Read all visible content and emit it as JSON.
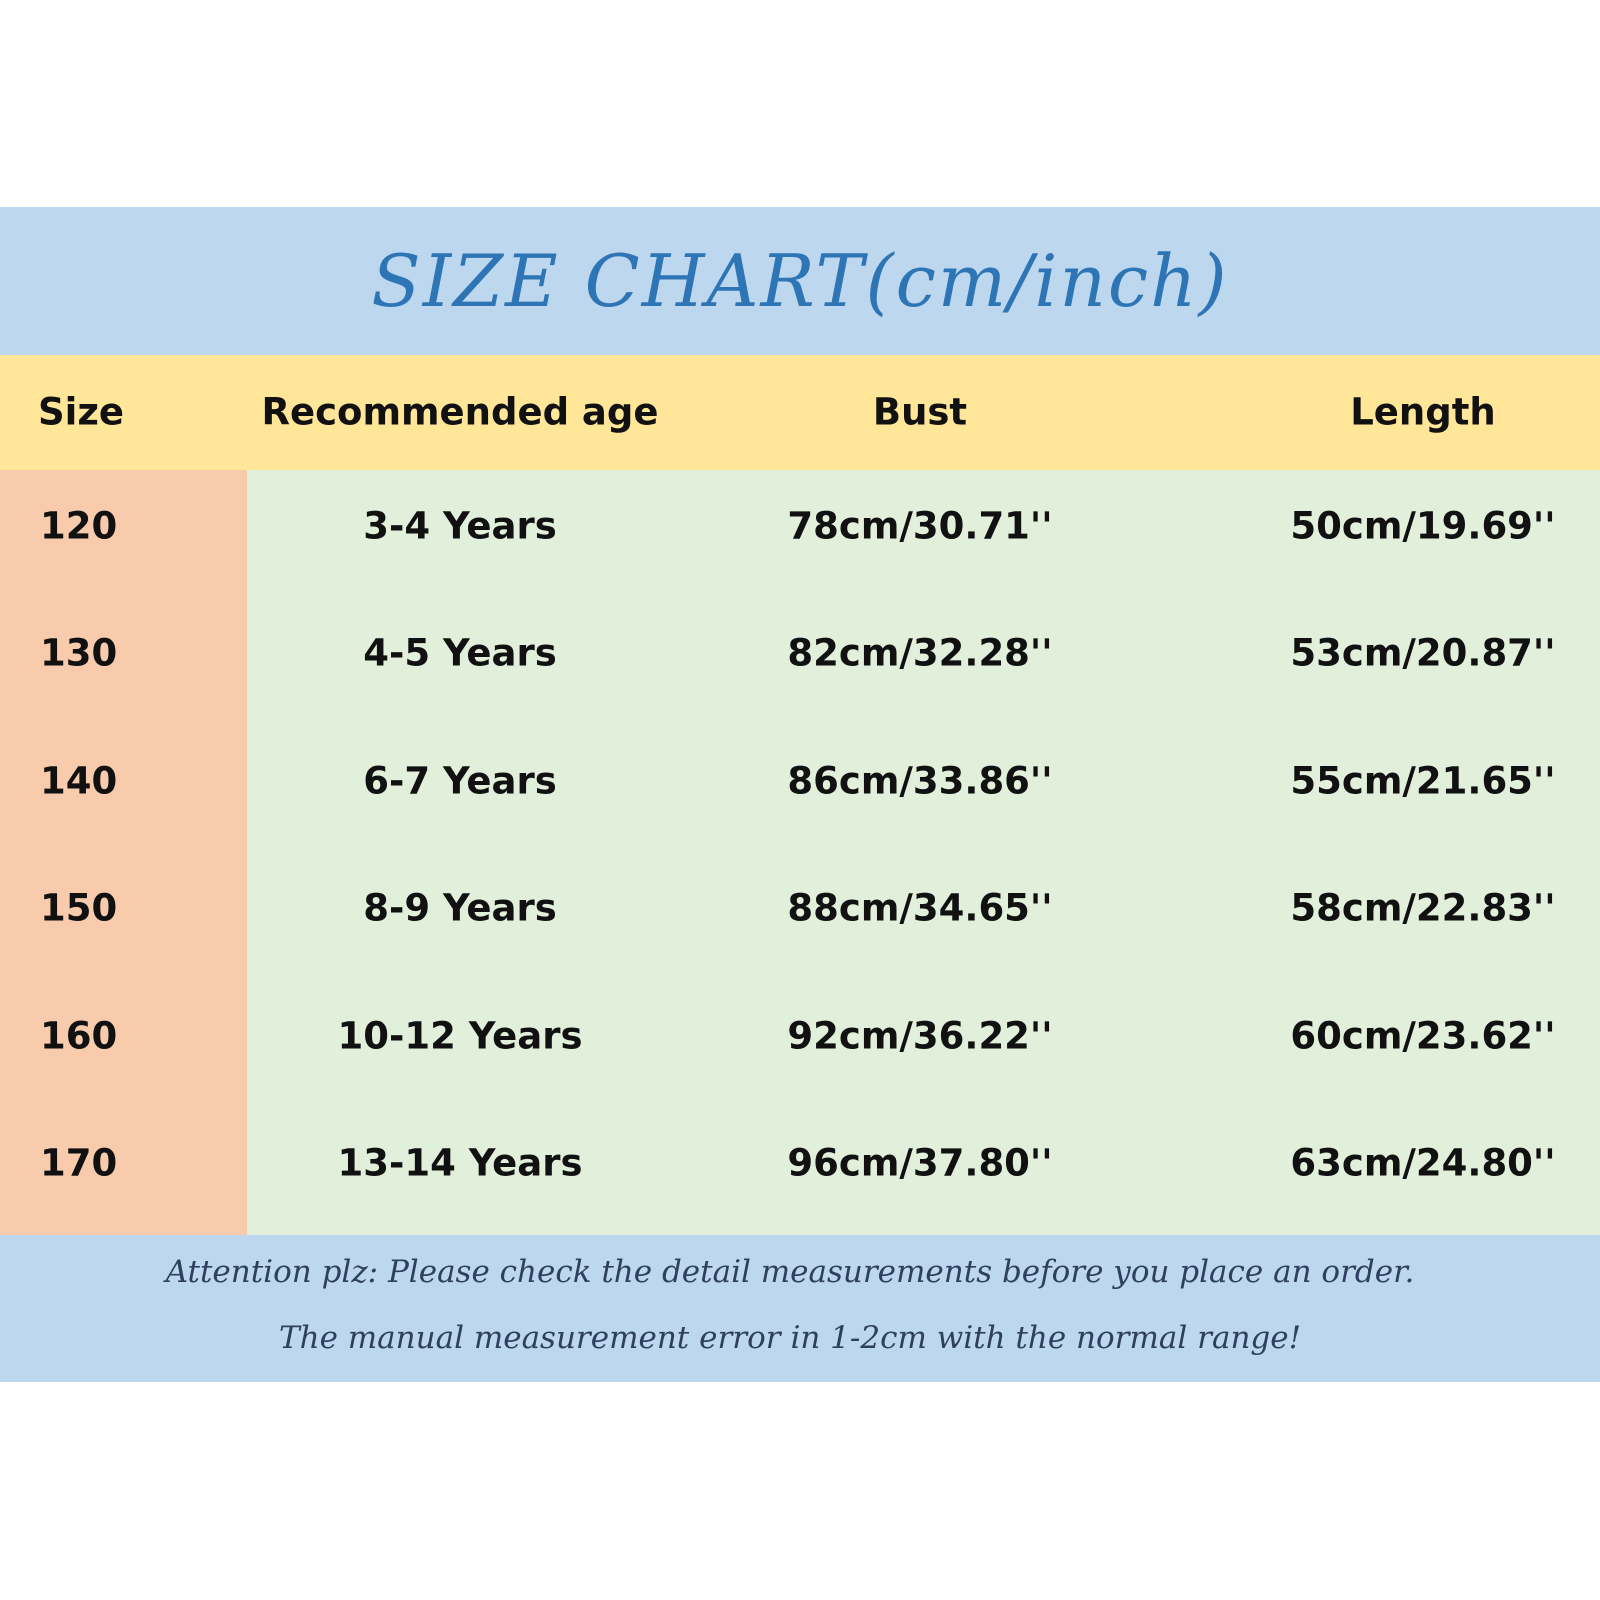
{
  "header": {
    "title": "SIZE CHART(cm/inch)"
  },
  "table": {
    "columns": [
      "Size",
      "Recommended age",
      "Bust",
      "Length"
    ],
    "rows": [
      [
        "120",
        "3-4 Years",
        "78cm/30.71''",
        "50cm/19.69''"
      ],
      [
        "130",
        "4-5 Years",
        "82cm/32.28''",
        "53cm/20.87''"
      ],
      [
        "140",
        "6-7 Years",
        "86cm/33.86''",
        "55cm/21.65''"
      ],
      [
        "150",
        "8-9 Years",
        "88cm/34.65''",
        "58cm/22.83''"
      ],
      [
        "160",
        "10-12 Years",
        "92cm/36.22''",
        "60cm/23.62''"
      ],
      [
        "170",
        "13-14 Years",
        "96cm/37.80''",
        "63cm/24.80''"
      ]
    ]
  },
  "footer": {
    "lines": [
      "Attention plz:  Please check the detail measurements before you place an order.",
      "The manual measurement error in 1-2cm with the normal range!"
    ]
  }
}
